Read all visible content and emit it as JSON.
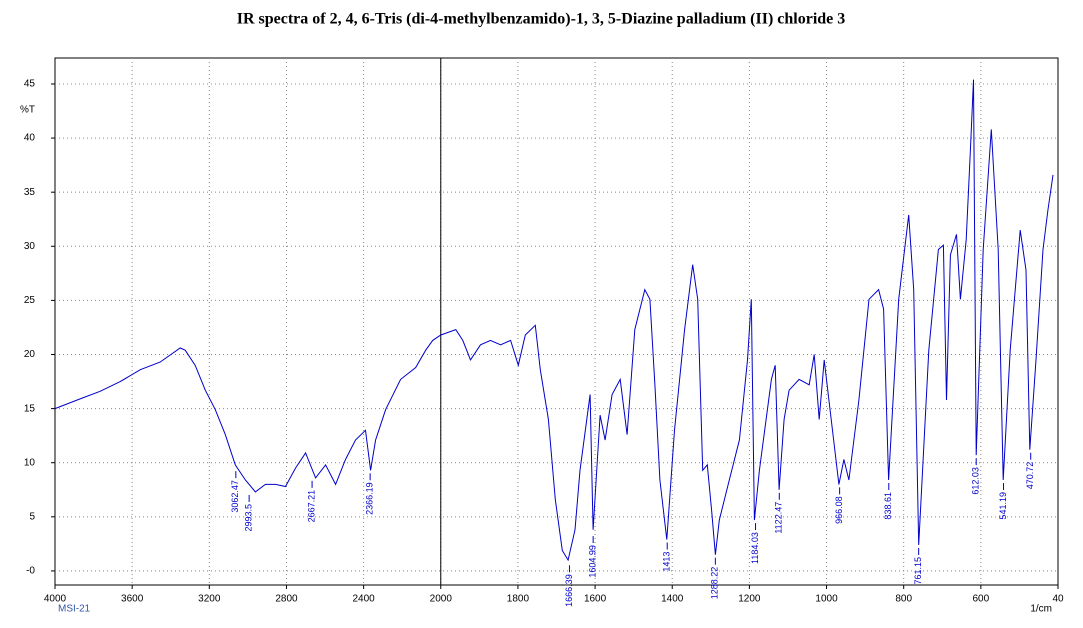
{
  "chart_data": {
    "type": "line",
    "title": "IR spectra of 2, 4, 6-Tris (di-4-methylbenzamido)-1, 3, 5-Diazine palladium (II) chloride 3",
    "y_label": "%T",
    "x_label": "1/cm",
    "footnote": "MSI-21",
    "xlim": [
      4000,
      400
    ],
    "ylim": [
      -1.3,
      47.4
    ],
    "xticks": [
      4000,
      3600,
      3200,
      2800,
      2400,
      2000,
      1800,
      1600,
      1400,
      1200,
      1000,
      800,
      600,
      {
        "value": 400,
        "label": "40"
      }
    ],
    "yticks": [
      {
        "value": 0,
        "label": "-0"
      },
      5,
      10,
      15,
      20,
      25,
      30,
      35,
      40,
      45
    ],
    "divider_x": 2000,
    "grid": true,
    "series": [
      {
        "color": "#0000cc",
        "x": [
          4000,
          3870,
          3766,
          3662,
          3558,
          3455,
          3351,
          3325,
          3273,
          3221,
          3169,
          3117,
          3065,
          3013,
          2961,
          2909,
          2857,
          2805,
          2753,
          2701,
          2649,
          2597,
          2545,
          2494,
          2442,
          2390,
          2364,
          2338,
          2286,
          2208,
          2130,
          2078,
          2042,
          2000,
          1961,
          1943,
          1923,
          1897,
          1871,
          1845,
          1819,
          1799,
          1781,
          1755,
          1742,
          1721,
          1703,
          1685,
          1670,
          1652,
          1639,
          1613,
          1605,
          1587,
          1574,
          1556,
          1535,
          1517,
          1497,
          1471,
          1458,
          1445,
          1432,
          1414,
          1394,
          1368,
          1347,
          1334,
          1321,
          1309,
          1298,
          1288,
          1278,
          1252,
          1226,
          1205,
          1195,
          1187,
          1174,
          1143,
          1133,
          1123,
          1110,
          1097,
          1071,
          1045,
          1032,
          1019,
          1006,
          994,
          968,
          955,
          942,
          916,
          890,
          865,
          852,
          839,
          813,
          787,
          774,
          761,
          735,
          710,
          697,
          689,
          679,
          663,
          653,
          638,
          627,
          619,
          612,
          594,
          573,
          555,
          542,
          524,
          498,
          483,
          473,
          457,
          439,
          426,
          413
        ],
        "values": [
          15.0,
          15.9,
          16.6,
          17.5,
          18.6,
          19.3,
          20.6,
          20.4,
          19.0,
          16.7,
          14.9,
          12.6,
          9.8,
          8.4,
          7.3,
          8.0,
          8.0,
          7.8,
          9.5,
          10.9,
          8.6,
          9.8,
          8.0,
          10.3,
          12.1,
          13.0,
          9.3,
          12.1,
          14.9,
          17.7,
          18.8,
          20.4,
          21.3,
          21.8,
          22.3,
          21.3,
          19.5,
          20.9,
          21.3,
          20.9,
          21.3,
          19.0,
          21.8,
          22.7,
          18.6,
          14.0,
          6.6,
          1.9,
          1.0,
          3.8,
          9.3,
          16.3,
          3.8,
          14.4,
          12.1,
          16.3,
          17.7,
          12.6,
          22.3,
          26.0,
          25.1,
          17.2,
          8.4,
          2.9,
          13.0,
          22.3,
          28.3,
          25.1,
          9.3,
          9.8,
          5.6,
          1.5,
          4.7,
          8.4,
          12.1,
          19.5,
          25.1,
          4.7,
          9.3,
          17.7,
          19.0,
          7.5,
          14.0,
          16.7,
          17.7,
          17.2,
          20.0,
          14.0,
          19.5,
          15.8,
          8.0,
          10.3,
          8.4,
          15.8,
          25.1,
          26.0,
          24.2,
          8.4,
          25.1,
          32.9,
          26.0,
          2.4,
          20.4,
          29.7,
          30.1,
          15.8,
          29.2,
          31.1,
          25.1,
          30.6,
          38.9,
          45.4,
          10.7,
          29.7,
          40.8,
          29.7,
          8.4,
          20.4,
          31.5,
          27.8,
          11.2,
          19.5,
          29.7,
          33.4,
          36.6
        ]
      }
    ],
    "peaks": [
      {
        "x": 3062.47,
        "y": 9.5
      },
      {
        "x": 2993.5,
        "y": 7.3
      },
      {
        "x": 2667.21,
        "y": 8.6
      },
      {
        "x": 2366.19,
        "y": 9.3
      },
      {
        "x": 1666.39,
        "y": 0.8
      },
      {
        "x": 1604.99,
        "y": 3.5
      },
      {
        "x": 1413.0,
        "y": 2.9
      },
      {
        "x": 1288.22,
        "y": 1.5
      },
      {
        "x": 1184.03,
        "y": 4.7
      },
      {
        "x": 1122.47,
        "y": 7.5
      },
      {
        "x": 966.08,
        "y": 8.0
      },
      {
        "x": 838.61,
        "y": 8.4
      },
      {
        "x": 761.15,
        "y": 2.4
      },
      {
        "x": 612.03,
        "y": 10.7
      },
      {
        "x": 541.19,
        "y": 8.4
      },
      {
        "x": 470.72,
        "y": 11.2
      }
    ]
  }
}
